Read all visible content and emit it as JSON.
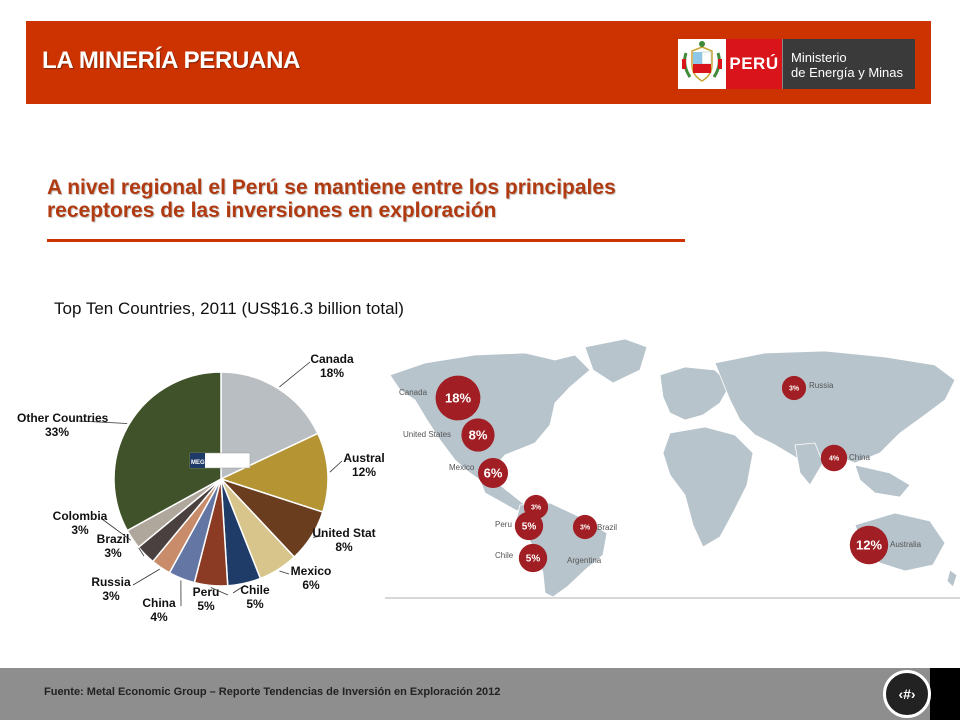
{
  "header": {
    "title": "LA MINERÍA PERUANA",
    "logo": {
      "country": "PERÚ",
      "ministry_line1": "Ministerio",
      "ministry_line2": "de Energía y Minas"
    }
  },
  "subtitle_line1": "A nivel regional el Perú se mantiene entre los principales",
  "subtitle_line2": "receptores de las inversiones en exploración",
  "legend_logo_text": "MEG",
  "footer": {
    "source": "Fuente: Metal Economic Group – Reporte Tendencias de Inversión en Exploración 2012",
    "page_number": "‹#›"
  },
  "colors": {
    "header": "#cc3300",
    "subtitle": "#b13a10",
    "bubble": "#a11f24",
    "map_land": "#b7c4cc"
  },
  "chart_data": [
    {
      "type": "pie",
      "title": "Top Ten Countries, 2011 (US$16.3 billion total)",
      "labels": [
        "Canada",
        "Australia",
        "United States",
        "Mexico",
        "Chile",
        "Peru",
        "China",
        "Russia",
        "Brazil",
        "Colombia",
        "Other Countries"
      ],
      "display_labels": [
        "Canada",
        "Austral",
        "United Stat",
        "Mexico",
        "Chile",
        "Peru",
        "China",
        "Russia",
        "Brazil",
        "Colombia",
        "Other Countries"
      ],
      "values": [
        18,
        12,
        8,
        6,
        5,
        5,
        4,
        3,
        3,
        3,
        33
      ],
      "value_labels": [
        "18%",
        "12%",
        "8%",
        "6%",
        "5%",
        "5%",
        "4%",
        "3%",
        "3%",
        "3%",
        "33%"
      ],
      "colors": [
        "#b9bec2",
        "#b59434",
        "#6a3d1e",
        "#d8c58c",
        "#1f3b68",
        "#8b3a23",
        "#6476a3",
        "#c98c6b",
        "#4a4040",
        "#b0a79c",
        "#40522a"
      ]
    },
    {
      "type": "map",
      "title": "",
      "country_labels": [
        "Canada",
        "United States",
        "Mexico",
        "Peru",
        "Chile",
        "Brazil",
        "Argentina",
        "Russia",
        "China",
        "Australia"
      ],
      "bubbles": [
        {
          "country": "Canada",
          "label": "18%",
          "value": 18
        },
        {
          "country": "United States",
          "label": "8%",
          "value": 8
        },
        {
          "country": "Mexico",
          "label": "6%",
          "value": 6
        },
        {
          "country": "Colombia",
          "label": "3%",
          "value": 3
        },
        {
          "country": "Peru",
          "label": "5%",
          "value": 5
        },
        {
          "country": "Brazil",
          "label": "3%",
          "value": 3
        },
        {
          "country": "Chile",
          "label": "5%",
          "value": 5
        },
        {
          "country": "Russia",
          "label": "3%",
          "value": 3
        },
        {
          "country": "China",
          "label": "4%",
          "value": 4
        },
        {
          "country": "Australia",
          "label": "12%",
          "value": 12
        }
      ]
    }
  ]
}
